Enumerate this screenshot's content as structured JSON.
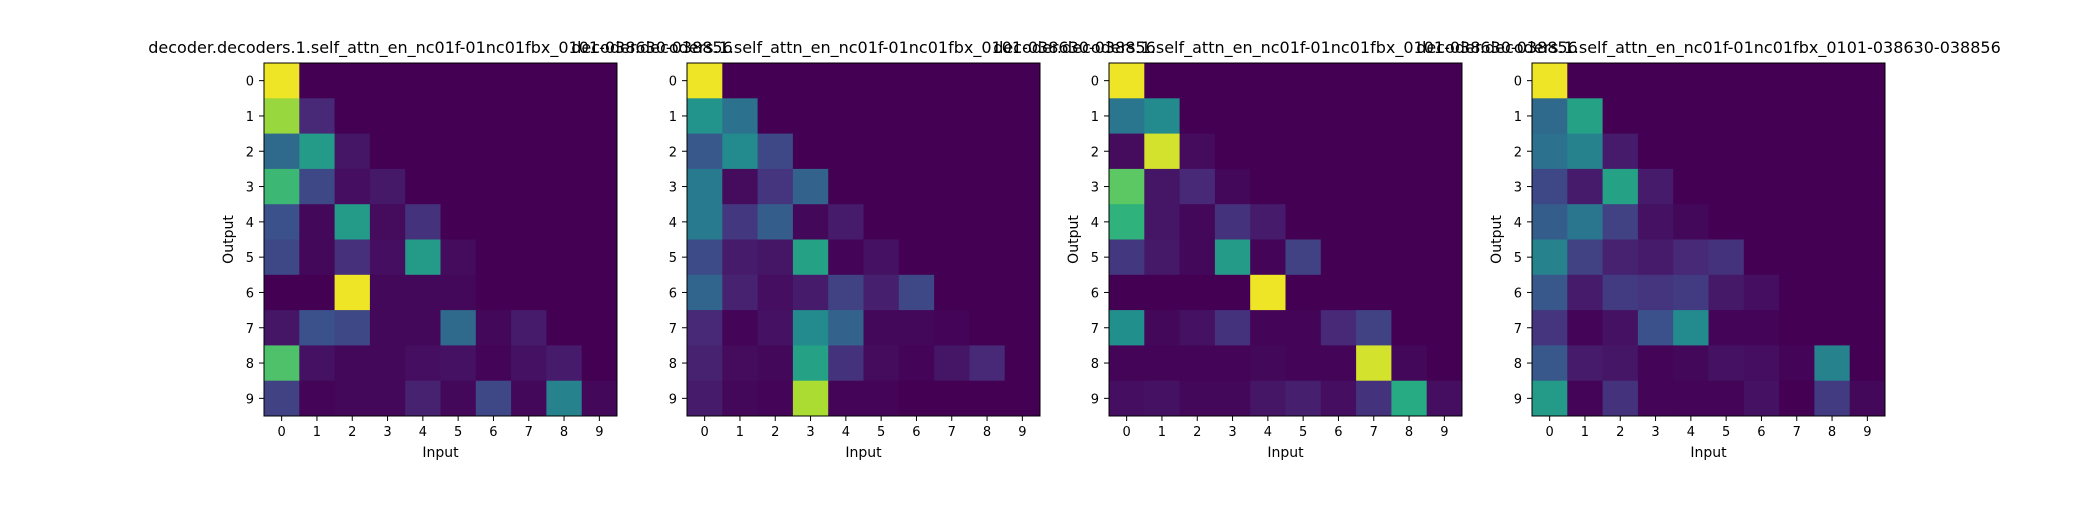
{
  "figure": {
    "colormap": "viridis"
  },
  "chart_data": [
    {
      "type": "heatmap",
      "title": "decoder.decoders.1.self_attn_en_nc01f-01nc01fbx_0101-038630-038856",
      "xlabel": "Input",
      "ylabel": "Output",
      "x_ticks": [
        "0",
        "1",
        "2",
        "3",
        "4",
        "5",
        "6",
        "7",
        "8",
        "9"
      ],
      "y_ticks": [
        "0",
        "1",
        "2",
        "3",
        "4",
        "5",
        "6",
        "7",
        "8",
        "9"
      ],
      "values": [
        [
          0.98,
          0.0,
          0.0,
          0.0,
          0.0,
          0.0,
          0.0,
          0.0,
          0.0,
          0.0
        ],
        [
          0.85,
          0.12,
          0.0,
          0.0,
          0.0,
          0.0,
          0.0,
          0.0,
          0.0,
          0.0
        ],
        [
          0.35,
          0.55,
          0.06,
          0.0,
          0.0,
          0.0,
          0.0,
          0.0,
          0.0,
          0.0
        ],
        [
          0.68,
          0.22,
          0.04,
          0.07,
          0.0,
          0.0,
          0.0,
          0.0,
          0.0,
          0.0
        ],
        [
          0.25,
          0.02,
          0.55,
          0.03,
          0.15,
          0.0,
          0.0,
          0.0,
          0.0,
          0.0
        ],
        [
          0.22,
          0.02,
          0.14,
          0.04,
          0.55,
          0.03,
          0.0,
          0.0,
          0.0,
          0.0
        ],
        [
          0.0,
          0.0,
          0.98,
          0.02,
          0.02,
          0.02,
          0.0,
          0.0,
          0.0,
          0.0
        ],
        [
          0.06,
          0.25,
          0.22,
          0.02,
          0.02,
          0.35,
          0.02,
          0.08,
          0.0,
          0.0
        ],
        [
          0.72,
          0.05,
          0.02,
          0.02,
          0.04,
          0.05,
          0.01,
          0.05,
          0.08,
          0.0
        ],
        [
          0.2,
          0.01,
          0.02,
          0.02,
          0.1,
          0.02,
          0.22,
          0.02,
          0.45,
          0.02
        ]
      ]
    },
    {
      "type": "heatmap",
      "title": "decoder.decoders.1.self_attn_en_nc01f-01nc01fbx_0101-038630-038856",
      "xlabel": "Input",
      "ylabel": "",
      "x_ticks": [
        "0",
        "1",
        "2",
        "3",
        "4",
        "5",
        "6",
        "7",
        "8",
        "9"
      ],
      "y_ticks": [
        "0",
        "1",
        "2",
        "3",
        "4",
        "5",
        "6",
        "7",
        "8",
        "9"
      ],
      "values": [
        [
          0.98,
          0.0,
          0.0,
          0.0,
          0.0,
          0.0,
          0.0,
          0.0,
          0.0,
          0.0
        ],
        [
          0.52,
          0.38,
          0.0,
          0.0,
          0.0,
          0.0,
          0.0,
          0.0,
          0.0,
          0.0
        ],
        [
          0.28,
          0.48,
          0.22,
          0.0,
          0.0,
          0.0,
          0.0,
          0.0,
          0.0,
          0.0
        ],
        [
          0.42,
          0.03,
          0.16,
          0.32,
          0.0,
          0.0,
          0.0,
          0.0,
          0.0,
          0.0
        ],
        [
          0.42,
          0.17,
          0.3,
          0.02,
          0.08,
          0.0,
          0.0,
          0.0,
          0.0,
          0.0
        ],
        [
          0.23,
          0.08,
          0.06,
          0.58,
          0.01,
          0.05,
          0.0,
          0.0,
          0.0,
          0.0
        ],
        [
          0.33,
          0.1,
          0.04,
          0.08,
          0.2,
          0.09,
          0.22,
          0.0,
          0.0,
          0.0
        ],
        [
          0.12,
          0.01,
          0.05,
          0.48,
          0.32,
          0.02,
          0.02,
          0.01,
          0.0,
          0.0
        ],
        [
          0.1,
          0.03,
          0.02,
          0.58,
          0.15,
          0.03,
          0.01,
          0.06,
          0.12,
          0.0
        ],
        [
          0.08,
          0.02,
          0.01,
          0.88,
          0.01,
          0.01,
          0.0,
          0.0,
          0.0,
          0.0
        ]
      ]
    },
    {
      "type": "heatmap",
      "title": "decoder.decoders.1.self_attn_en_nc01f-01nc01fbx_0101-038630-038856",
      "xlabel": "Input",
      "ylabel": "Output",
      "x_ticks": [
        "0",
        "1",
        "2",
        "3",
        "4",
        "5",
        "6",
        "7",
        "8",
        "9"
      ],
      "y_ticks": [
        "0",
        "1",
        "2",
        "3",
        "4",
        "5",
        "6",
        "7",
        "8",
        "9"
      ],
      "values": [
        [
          0.98,
          0.0,
          0.0,
          0.0,
          0.0,
          0.0,
          0.0,
          0.0,
          0.0,
          0.0
        ],
        [
          0.4,
          0.48,
          0.0,
          0.0,
          0.0,
          0.0,
          0.0,
          0.0,
          0.0,
          0.0
        ],
        [
          0.03,
          0.94,
          0.03,
          0.0,
          0.0,
          0.0,
          0.0,
          0.0,
          0.0,
          0.0
        ],
        [
          0.75,
          0.06,
          0.12,
          0.02,
          0.0,
          0.0,
          0.0,
          0.0,
          0.0,
          0.0
        ],
        [
          0.65,
          0.06,
          0.02,
          0.15,
          0.08,
          0.0,
          0.0,
          0.0,
          0.0,
          0.0
        ],
        [
          0.17,
          0.07,
          0.02,
          0.55,
          0.01,
          0.2,
          0.0,
          0.0,
          0.0,
          0.0
        ],
        [
          0.0,
          0.0,
          0.0,
          0.0,
          0.98,
          0.0,
          0.0,
          0.0,
          0.0,
          0.0
        ],
        [
          0.5,
          0.02,
          0.05,
          0.15,
          0.01,
          0.01,
          0.12,
          0.2,
          0.0,
          0.0
        ],
        [
          0.01,
          0.01,
          0.01,
          0.01,
          0.02,
          0.01,
          0.01,
          0.94,
          0.02,
          0.0
        ],
        [
          0.04,
          0.05,
          0.02,
          0.02,
          0.06,
          0.09,
          0.04,
          0.15,
          0.62,
          0.04
        ]
      ]
    },
    {
      "type": "heatmap",
      "title": "decoder.decoders.1.self_attn_en_nc01f-01nc01fbx_0101-038630-038856",
      "xlabel": "Input",
      "ylabel": "Output",
      "x_ticks": [
        "0",
        "1",
        "2",
        "3",
        "4",
        "5",
        "6",
        "7",
        "8",
        "9"
      ],
      "y_ticks": [
        "0",
        "1",
        "2",
        "3",
        "4",
        "5",
        "6",
        "7",
        "8",
        "9"
      ],
      "values": [
        [
          0.98,
          0.0,
          0.0,
          0.0,
          0.0,
          0.0,
          0.0,
          0.0,
          0.0,
          0.0
        ],
        [
          0.35,
          0.58,
          0.0,
          0.0,
          0.0,
          0.0,
          0.0,
          0.0,
          0.0,
          0.0
        ],
        [
          0.38,
          0.45,
          0.08,
          0.0,
          0.0,
          0.0,
          0.0,
          0.0,
          0.0,
          0.0
        ],
        [
          0.22,
          0.08,
          0.58,
          0.08,
          0.0,
          0.0,
          0.0,
          0.0,
          0.0,
          0.0
        ],
        [
          0.3,
          0.4,
          0.2,
          0.05,
          0.02,
          0.0,
          0.0,
          0.0,
          0.0,
          0.0
        ],
        [
          0.45,
          0.2,
          0.1,
          0.08,
          0.12,
          0.15,
          0.0,
          0.0,
          0.0,
          0.0
        ],
        [
          0.28,
          0.08,
          0.18,
          0.16,
          0.18,
          0.07,
          0.04,
          0.0,
          0.0,
          0.0
        ],
        [
          0.16,
          0.01,
          0.05,
          0.25,
          0.48,
          0.01,
          0.01,
          0.0,
          0.0,
          0.0
        ],
        [
          0.28,
          0.08,
          0.06,
          0.01,
          0.02,
          0.05,
          0.04,
          0.01,
          0.45,
          0.0
        ],
        [
          0.55,
          0.01,
          0.15,
          0.01,
          0.01,
          0.01,
          0.05,
          0.0,
          0.18,
          0.02
        ]
      ]
    }
  ]
}
